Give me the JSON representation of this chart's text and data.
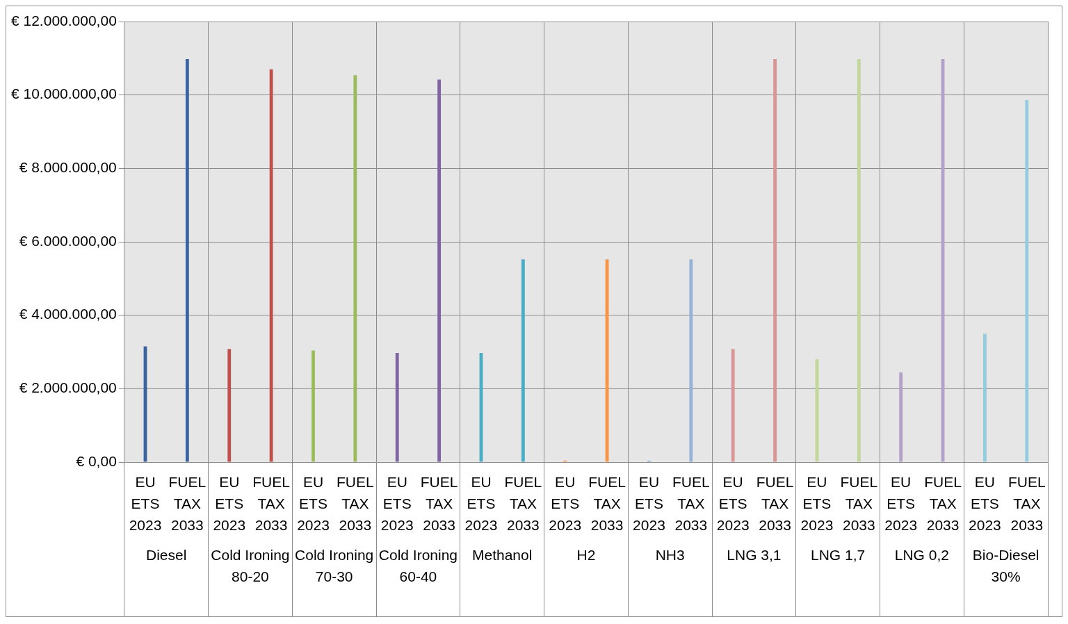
{
  "chart_data": {
    "type": "bar",
    "categories": [
      "Diesel",
      "Cold Ironing 80-20",
      "Cold Ironing 70-30",
      "Cold Ironing 60-40",
      "Methanol",
      "H2",
      "NH3",
      "LNG 3,1",
      "LNG 1,7",
      "LNG 0,2",
      "Bio-Diesel 30%"
    ],
    "series": [
      {
        "name": "EU ETS 2023",
        "colors": [
          "#3a64a0",
          "#c0504d",
          "#9bbb59",
          "#8064a2",
          "#4bacc6",
          "#f79646",
          "#95b3d7",
          "#d99694",
          "#c3d69b",
          "#b3a2c7",
          "#93cddd"
        ],
        "values": [
          3150000,
          3080000,
          3040000,
          2970000,
          2970000,
          40000,
          40000,
          3080000,
          2800000,
          2440000,
          3490000
        ]
      },
      {
        "name": "FUEL TAX 2033",
        "colors": [
          "#3a64a0",
          "#c0504d",
          "#9bbb59",
          "#8064a2",
          "#4bacc6",
          "#f79646",
          "#95b3d7",
          "#d99694",
          "#c3d69b",
          "#b3a2c7",
          "#93cddd"
        ],
        "values": [
          10980000,
          10700000,
          10540000,
          10420000,
          5520000,
          5520000,
          5520000,
          10980000,
          10980000,
          10980000,
          9860000
        ]
      }
    ],
    "ylim": [
      0,
      12000000
    ],
    "yticks": [
      {
        "value": 0,
        "label": "€ 0,00"
      },
      {
        "value": 2000000,
        "label": "€ 2.000.000,00"
      },
      {
        "value": 4000000,
        "label": "€ 4.000.000,00"
      },
      {
        "value": 6000000,
        "label": "€ 6.000.000,00"
      },
      {
        "value": 8000000,
        "label": "€ 8.000.000,00"
      },
      {
        "value": 10000000,
        "label": "€ 10.000.000,00"
      },
      {
        "value": 12000000,
        "label": "€ 12.000.000,00"
      }
    ],
    "grid": true,
    "legend": false
  }
}
